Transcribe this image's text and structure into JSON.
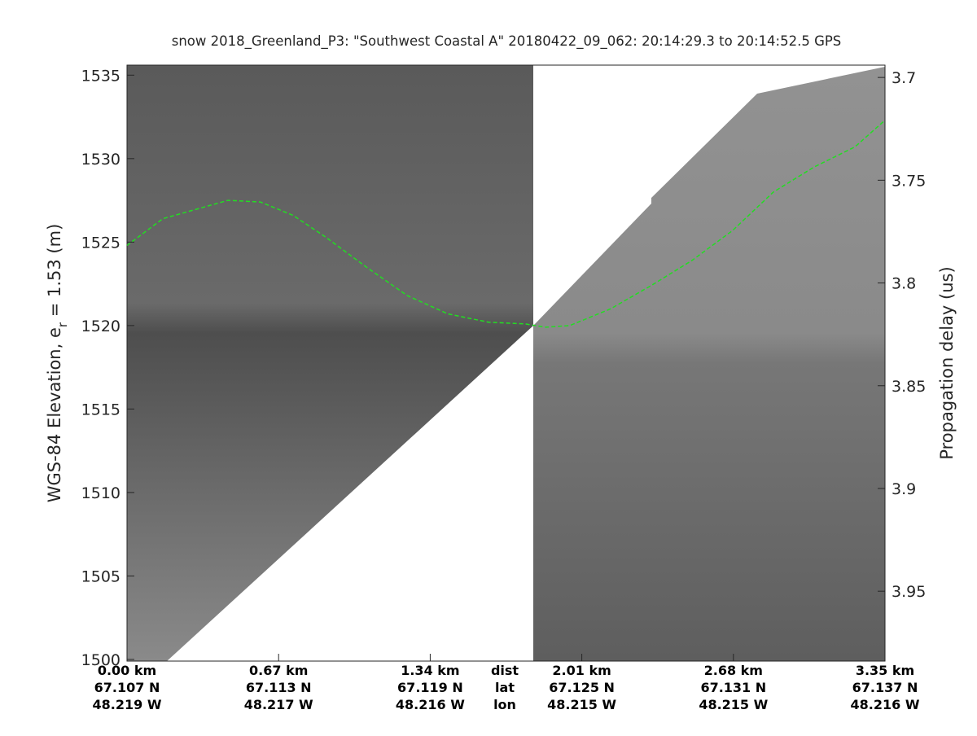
{
  "chart_data": {
    "type": "line",
    "title": "snow 2018_Greenland_P3: \"Southwest Coastal A\"  20180422_09_062: 20:14:29.3 to 20:14:52.5 GPS",
    "ylabel": {
      "text": "WGS-84 Elevation, e",
      "subscript": "r",
      "suffix": " = 1.53 (m)"
    },
    "y2label": "Propagation delay (us)",
    "xlim": [
      0,
      3.35
    ],
    "xticks": [
      {
        "value": 0,
        "label": "0.00 km"
      },
      {
        "value": 0.67,
        "label": "0.67 km"
      },
      {
        "value": 1.34,
        "label": "1.34 km"
      },
      {
        "value": 2.01,
        "label": "2.01 km"
      },
      {
        "value": 2.68,
        "label": "2.68 km"
      },
      {
        "value": 3.35,
        "label": "3.35 km"
      }
    ],
    "x_row_names": [
      "dist",
      "lat",
      "lon"
    ],
    "x_lat_labels": [
      "67.107 N",
      "67.113 N",
      "67.119 N",
      "67.125 N",
      "67.131 N",
      "67.137 N"
    ],
    "x_lon_labels": [
      "48.219 W",
      "48.217 W",
      "48.216 W",
      "48.215 W",
      "48.215 W",
      "48.216 W"
    ],
    "ylim": [
      1499.9,
      1535.6
    ],
    "yticks": [
      1500,
      1505,
      1510,
      1515,
      1520,
      1525,
      1530,
      1535
    ],
    "y2lim": [
      3.984,
      3.694
    ],
    "y2ticks": [
      3.7,
      3.75,
      3.8,
      3.85,
      3.9,
      3.95
    ],
    "series": [
      {
        "color": "#22dd22",
        "x": [
          0,
          0.158,
          0.446,
          0.59,
          0.734,
          0.878,
          1.058,
          1.238,
          1.418,
          1.598,
          1.76,
          1.85,
          1.957,
          2.137,
          2.317,
          2.497,
          2.677,
          2.857,
          3.037,
          3.217,
          3.35
        ],
        "values": [
          1524.8,
          1526.4,
          1527.5,
          1527.4,
          1526.6,
          1525.3,
          1523.5,
          1521.8,
          1520.7,
          1520.2,
          1520.1,
          1519.9,
          1520.0,
          1521.0,
          1522.4,
          1523.9,
          1525.7,
          1528.0,
          1529.5,
          1530.7,
          1532.3
        ]
      }
    ]
  }
}
